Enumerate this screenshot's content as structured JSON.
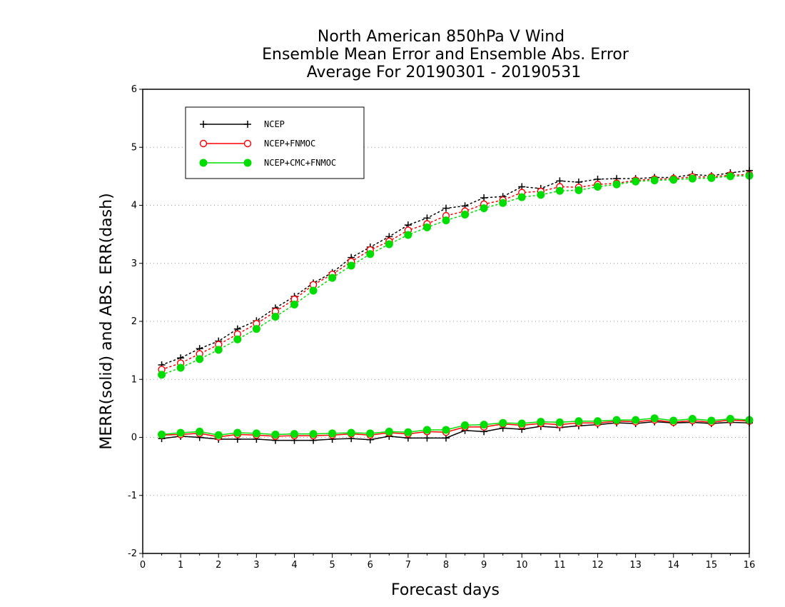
{
  "chart_data": {
    "type": "line",
    "title": [
      "North American 850hPa V Wind",
      "Ensemble Mean Error and Ensemble Abs. Error",
      "Average For 20190301 - 20190531"
    ],
    "xlabel": "Forecast days",
    "ylabel": "MERR(solid) and ABS. ERR(dash)",
    "xlim": [
      0,
      16
    ],
    "ylim": [
      -2,
      6
    ],
    "xticks": [
      "0",
      "1",
      "2",
      "3",
      "4",
      "5",
      "6",
      "7",
      "8",
      "9",
      "10",
      "11",
      "12",
      "13",
      "14",
      "15",
      "16"
    ],
    "yticks": [
      "-2",
      "-1",
      "0",
      "1",
      "2",
      "3",
      "4",
      "5",
      "6"
    ],
    "grid": "horizontal dotted",
    "legend_position": "top-left",
    "x": [
      0.5,
      1,
      1.5,
      2,
      2.5,
      3,
      3.5,
      4,
      4.5,
      5,
      5.5,
      6,
      6.5,
      7,
      7.5,
      8,
      8.5,
      9,
      9.5,
      10,
      10.5,
      11,
      11.5,
      12,
      12.5,
      13,
      13.5,
      14,
      14.5,
      15,
      15.5,
      16
    ],
    "series": [
      {
        "name": "NCEP",
        "color": "#000000",
        "marker": "plus",
        "merr": [
          -0.02,
          0.02,
          0.0,
          -0.03,
          -0.03,
          -0.03,
          -0.05,
          -0.05,
          -0.05,
          -0.03,
          -0.02,
          -0.04,
          0.02,
          -0.01,
          -0.01,
          -0.01,
          0.12,
          0.1,
          0.16,
          0.14,
          0.19,
          0.17,
          0.2,
          0.22,
          0.25,
          0.24,
          0.27,
          0.25,
          0.26,
          0.24,
          0.26,
          0.25
        ],
        "abs_err": [
          1.25,
          1.37,
          1.53,
          1.66,
          1.87,
          2.01,
          2.23,
          2.43,
          2.66,
          2.84,
          3.1,
          3.28,
          3.46,
          3.66,
          3.78,
          3.95,
          3.99,
          4.13,
          4.15,
          4.32,
          4.29,
          4.42,
          4.4,
          4.45,
          4.46,
          4.46,
          4.48,
          4.48,
          4.53,
          4.51,
          4.56,
          4.6
        ]
      },
      {
        "name": "NCEP+FNMOC",
        "color": "#ff0000",
        "marker": "open-circle",
        "merr": [
          0.04,
          0.05,
          0.07,
          0.01,
          0.05,
          0.04,
          0.02,
          0.03,
          0.03,
          0.04,
          0.06,
          0.04,
          0.08,
          0.06,
          0.1,
          0.09,
          0.18,
          0.18,
          0.23,
          0.21,
          0.24,
          0.22,
          0.25,
          0.25,
          0.28,
          0.27,
          0.3,
          0.26,
          0.29,
          0.26,
          0.3,
          0.28
        ],
        "abs_err": [
          1.17,
          1.28,
          1.44,
          1.6,
          1.78,
          1.96,
          2.17,
          2.38,
          2.63,
          2.81,
          3.03,
          3.23,
          3.38,
          3.57,
          3.68,
          3.82,
          3.9,
          4.02,
          4.09,
          4.22,
          4.24,
          4.32,
          4.31,
          4.36,
          4.38,
          4.43,
          4.45,
          4.46,
          4.49,
          4.49,
          4.52,
          4.53
        ]
      },
      {
        "name": "NCEP+CMC+FNMOC",
        "color": "#00dd00",
        "marker": "filled-circle",
        "merr": [
          0.05,
          0.08,
          0.1,
          0.04,
          0.08,
          0.07,
          0.05,
          0.06,
          0.06,
          0.07,
          0.08,
          0.07,
          0.1,
          0.09,
          0.13,
          0.13,
          0.21,
          0.22,
          0.25,
          0.24,
          0.27,
          0.26,
          0.28,
          0.28,
          0.3,
          0.3,
          0.33,
          0.29,
          0.32,
          0.29,
          0.32,
          0.3
        ],
        "abs_err": [
          1.08,
          1.2,
          1.35,
          1.51,
          1.69,
          1.87,
          2.08,
          2.29,
          2.53,
          2.75,
          2.96,
          3.16,
          3.33,
          3.49,
          3.62,
          3.74,
          3.84,
          3.95,
          4.04,
          4.14,
          4.18,
          4.25,
          4.26,
          4.32,
          4.36,
          4.41,
          4.43,
          4.44,
          4.46,
          4.47,
          4.5,
          4.51
        ]
      }
    ]
  }
}
